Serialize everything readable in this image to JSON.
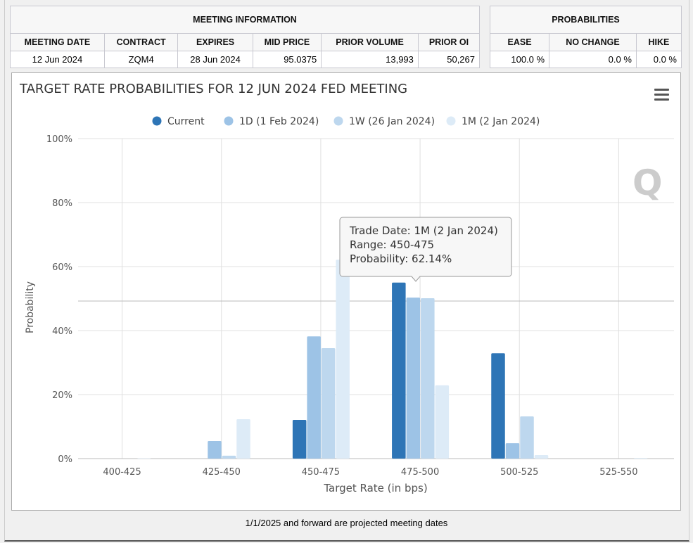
{
  "meeting_info": {
    "title": "MEETING INFORMATION",
    "headers": [
      "MEETING DATE",
      "CONTRACT",
      "EXPIRES",
      "MID PRICE",
      "PRIOR VOLUME",
      "PRIOR OI"
    ],
    "values": [
      "12 Jun 2024",
      "ZQM4",
      "28 Jun 2024",
      "95.0375",
      "13,993",
      "50,267"
    ]
  },
  "probabilities": {
    "title": "PROBABILITIES",
    "headers": [
      "EASE",
      "NO CHANGE",
      "HIKE"
    ],
    "values": [
      "100.0 %",
      "0.0 %",
      "0.0 %"
    ]
  },
  "footer": "1/1/2025 and forward are projected meeting dates",
  "chart_data": {
    "type": "bar",
    "title": "TARGET RATE PROBABILITIES FOR 12 JUN 2024 FED MEETING",
    "xlabel": "Target Rate (in bps)",
    "ylabel": "Probability",
    "ylim": [
      0,
      100
    ],
    "yticks": [
      "0%",
      "20%",
      "40%",
      "60%",
      "80%",
      "100%"
    ],
    "categories": [
      "400-425",
      "425-450",
      "450-475",
      "475-500",
      "500-525",
      "525-550"
    ],
    "legend_position": "top",
    "grid": true,
    "series": [
      {
        "name": "Current",
        "color": "#2e75b6",
        "values": [
          0,
          0,
          12.1,
          55.0,
          32.9,
          0
        ]
      },
      {
        "name": "1D (1 Feb 2024)",
        "color": "#9dc3e6",
        "values": [
          0,
          5.5,
          38.2,
          50.3,
          4.8,
          0
        ]
      },
      {
        "name": "1W (26 Jan 2024)",
        "color": "#bdd7ee",
        "values": [
          0,
          0.9,
          34.5,
          50.1,
          13.2,
          0
        ]
      },
      {
        "name": "1M (2 Jan 2024)",
        "color": "#ddebf7",
        "values": [
          0.1,
          12.3,
          62.14,
          22.9,
          1.1,
          0.2
        ]
      }
    ],
    "tooltip": {
      "line1": "Trade Date: 1M (2 Jan 2024)",
      "line2": "Range: 450-475",
      "line3": "Probability: 62.14%"
    },
    "menu_icon": "hamburger-menu-icon",
    "watermark": "Q"
  }
}
